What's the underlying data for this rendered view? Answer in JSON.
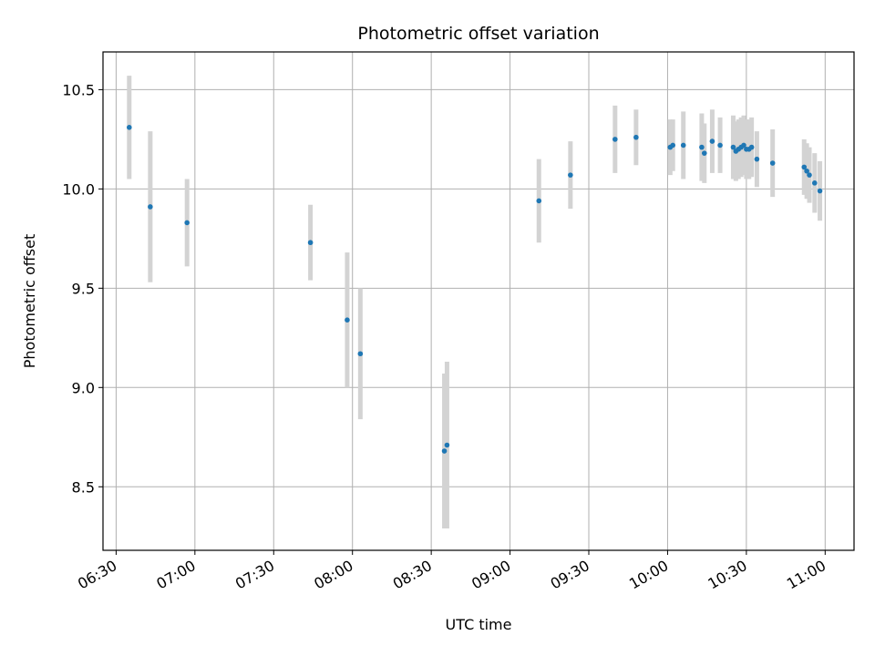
{
  "chart_data": {
    "type": "scatter",
    "title": "Photometric offset variation",
    "xlabel": "UTC time",
    "ylabel": "Photometric offset",
    "x_ticks": [
      "06:30",
      "07:00",
      "07:30",
      "08:00",
      "08:30",
      "09:00",
      "09:30",
      "10:00",
      "10:30",
      "11:00"
    ],
    "y_ticks": [
      "8.5",
      "9.0",
      "9.5",
      "10.0",
      "10.5"
    ],
    "xlim": [
      "06:25",
      "11:11"
    ],
    "ylim": [
      8.18,
      10.69
    ],
    "grid": true,
    "point_color": "#1f77b4",
    "errorbar_color": "#d3d3d3",
    "points": [
      {
        "t": "06:35",
        "y": 10.31,
        "err": 0.26
      },
      {
        "t": "06:43",
        "y": 9.91,
        "err": 0.38
      },
      {
        "t": "06:57",
        "y": 9.83,
        "err": 0.22
      },
      {
        "t": "07:44",
        "y": 9.73,
        "err": 0.19
      },
      {
        "t": "07:58",
        "y": 9.34,
        "err": 0.34
      },
      {
        "t": "08:03",
        "y": 9.17,
        "err": 0.33
      },
      {
        "t": "08:35",
        "y": 8.68,
        "err": 0.39
      },
      {
        "t": "08:36",
        "y": 8.71,
        "err": 0.42
      },
      {
        "t": "09:11",
        "y": 9.94,
        "err": 0.21
      },
      {
        "t": "09:23",
        "y": 10.07,
        "err": 0.17
      },
      {
        "t": "09:40",
        "y": 10.25,
        "err": 0.17
      },
      {
        "t": "09:48",
        "y": 10.26,
        "err": 0.14
      },
      {
        "t": "10:01",
        "y": 10.21,
        "err": 0.14
      },
      {
        "t": "10:02",
        "y": 10.22,
        "err": 0.13
      },
      {
        "t": "10:06",
        "y": 10.22,
        "err": 0.17
      },
      {
        "t": "10:13",
        "y": 10.21,
        "err": 0.17
      },
      {
        "t": "10:14",
        "y": 10.18,
        "err": 0.15
      },
      {
        "t": "10:17",
        "y": 10.24,
        "err": 0.16
      },
      {
        "t": "10:20",
        "y": 10.22,
        "err": 0.14
      },
      {
        "t": "10:25",
        "y": 10.21,
        "err": 0.16
      },
      {
        "t": "10:26",
        "y": 10.19,
        "err": 0.15
      },
      {
        "t": "10:27",
        "y": 10.2,
        "err": 0.15
      },
      {
        "t": "10:28",
        "y": 10.21,
        "err": 0.15
      },
      {
        "t": "10:29",
        "y": 10.22,
        "err": 0.15
      },
      {
        "t": "10:30",
        "y": 10.2,
        "err": 0.15
      },
      {
        "t": "10:31",
        "y": 10.2,
        "err": 0.15
      },
      {
        "t": "10:32",
        "y": 10.21,
        "err": 0.15
      },
      {
        "t": "10:34",
        "y": 10.15,
        "err": 0.14
      },
      {
        "t": "10:40",
        "y": 10.13,
        "err": 0.17
      },
      {
        "t": "10:52",
        "y": 10.11,
        "err": 0.14
      },
      {
        "t": "10:53",
        "y": 10.09,
        "err": 0.14
      },
      {
        "t": "10:54",
        "y": 10.07,
        "err": 0.14
      },
      {
        "t": "10:56",
        "y": 10.03,
        "err": 0.15
      },
      {
        "t": "10:58",
        "y": 9.99,
        "err": 0.15
      }
    ]
  }
}
